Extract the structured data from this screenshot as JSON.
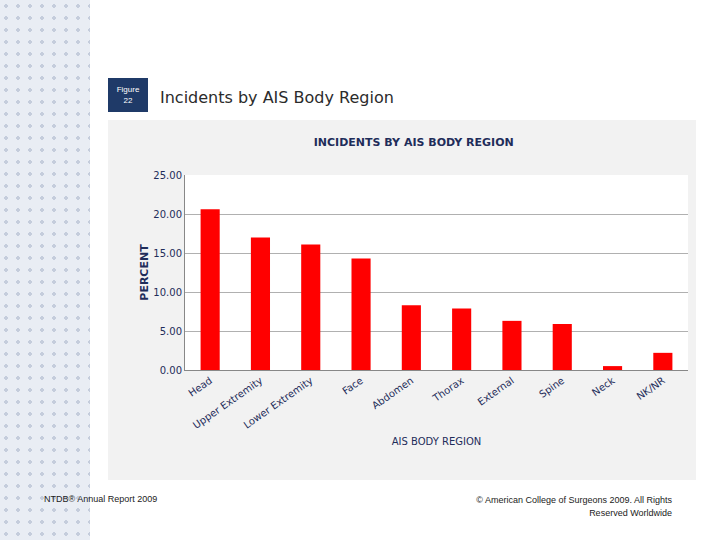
{
  "slide": {
    "figure_label": [
      "Figure",
      "22"
    ],
    "heading": "Incidents by AIS Body Region",
    "footer_left": "NTDB® Annual Report 2009",
    "footer_right": "© American College of Surgeons 2009.  All Rights Reserved Worldwide"
  },
  "chart_data": {
    "type": "bar",
    "title": "INCIDENTS BY AIS BODY REGION",
    "x_label": "AIS BODY REGION",
    "y_label": "PERCENT",
    "categories": [
      "Head",
      "Upper Extremity",
      "Lower Extremity",
      "Face",
      "Abdomen",
      "Thorax",
      "External",
      "Spine",
      "Neck",
      "NK/NR"
    ],
    "values": [
      20.6,
      17.0,
      16.1,
      14.3,
      8.3,
      7.9,
      6.3,
      5.9,
      0.5,
      2.2
    ],
    "color": "#ff0000",
    "ylim": [
      0,
      25
    ],
    "yticks": [
      {
        "value": 0,
        "label": "0.00"
      },
      {
        "value": 5,
        "label": "5.00"
      },
      {
        "value": 10,
        "label": "10.00"
      },
      {
        "value": 15,
        "label": "15.00"
      },
      {
        "value": 20,
        "label": "20.00"
      },
      {
        "value": 25,
        "label": "25.00"
      }
    ],
    "grid": true
  }
}
